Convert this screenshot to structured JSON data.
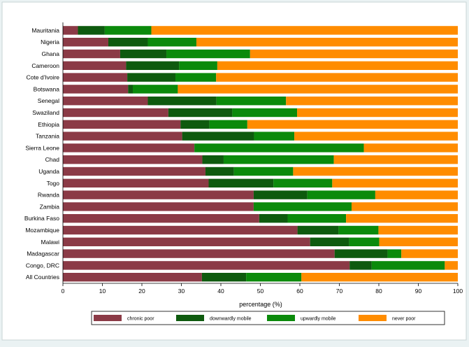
{
  "chart_data": {
    "type": "bar",
    "orientation": "horizontal",
    "stacked": true,
    "title": "",
    "xlabel": "percentage (%)",
    "ylabel": "",
    "xlim": [
      0,
      100
    ],
    "xticks": [
      0,
      10,
      20,
      30,
      40,
      50,
      60,
      70,
      80,
      90,
      100
    ],
    "grid": false,
    "legend_position": "bottom",
    "categories": [
      "Mauritania",
      "Nigeria",
      "Ghana",
      "Cameroon",
      "Cote d'Ivoire",
      "Botswana",
      "Senegal",
      "Swaziland",
      "Ethiopia",
      "Tanzania",
      "Sierra Leone",
      "Chad",
      "Uganda",
      "Togo",
      "Rwanda",
      "Zambia",
      "Burkina Faso",
      "Mozambique",
      "Malawi",
      "Madagascar",
      "Congo, DRC",
      "All Countries"
    ],
    "series": [
      {
        "name": "chronic poor",
        "color": "#8b3a46",
        "values": [
          3.8,
          11.5,
          14.5,
          16.0,
          16.3,
          16.5,
          21.5,
          26.7,
          29.8,
          30.2,
          33.3,
          35.3,
          36.1,
          36.9,
          48.3,
          48.3,
          49.7,
          59.4,
          62.6,
          68.8,
          72.6,
          35.2
        ]
      },
      {
        "name": "downwardly mobile",
        "color": "#0e5a0e",
        "values": [
          6.8,
          10.0,
          11.7,
          13.4,
          12.2,
          1.2,
          17.4,
          16.2,
          7.3,
          18.2,
          0.0,
          5.4,
          7.2,
          16.4,
          13.6,
          0.0,
          7.2,
          10.4,
          9.9,
          13.4,
          5.6,
          11.2
        ]
      },
      {
        "name": "upwardly mobile",
        "color": "#0b8a0b",
        "values": [
          11.8,
          12.3,
          21.2,
          9.7,
          10.3,
          11.4,
          17.6,
          16.4,
          9.6,
          10.2,
          42.9,
          27.9,
          15.0,
          14.9,
          17.2,
          24.8,
          14.8,
          10.1,
          7.6,
          3.5,
          18.5,
          14.0
        ]
      },
      {
        "name": "never poor",
        "color": "#ff8c00",
        "values": [
          77.6,
          66.2,
          52.6,
          60.9,
          61.2,
          70.9,
          43.5,
          40.7,
          53.3,
          41.4,
          23.8,
          31.4,
          41.7,
          31.8,
          20.9,
          26.9,
          28.3,
          20.1,
          19.9,
          14.3,
          3.3,
          39.6
        ]
      }
    ]
  },
  "colors": {
    "outer_background": "#eaf2f3",
    "plot_background": "#ffffff"
  }
}
